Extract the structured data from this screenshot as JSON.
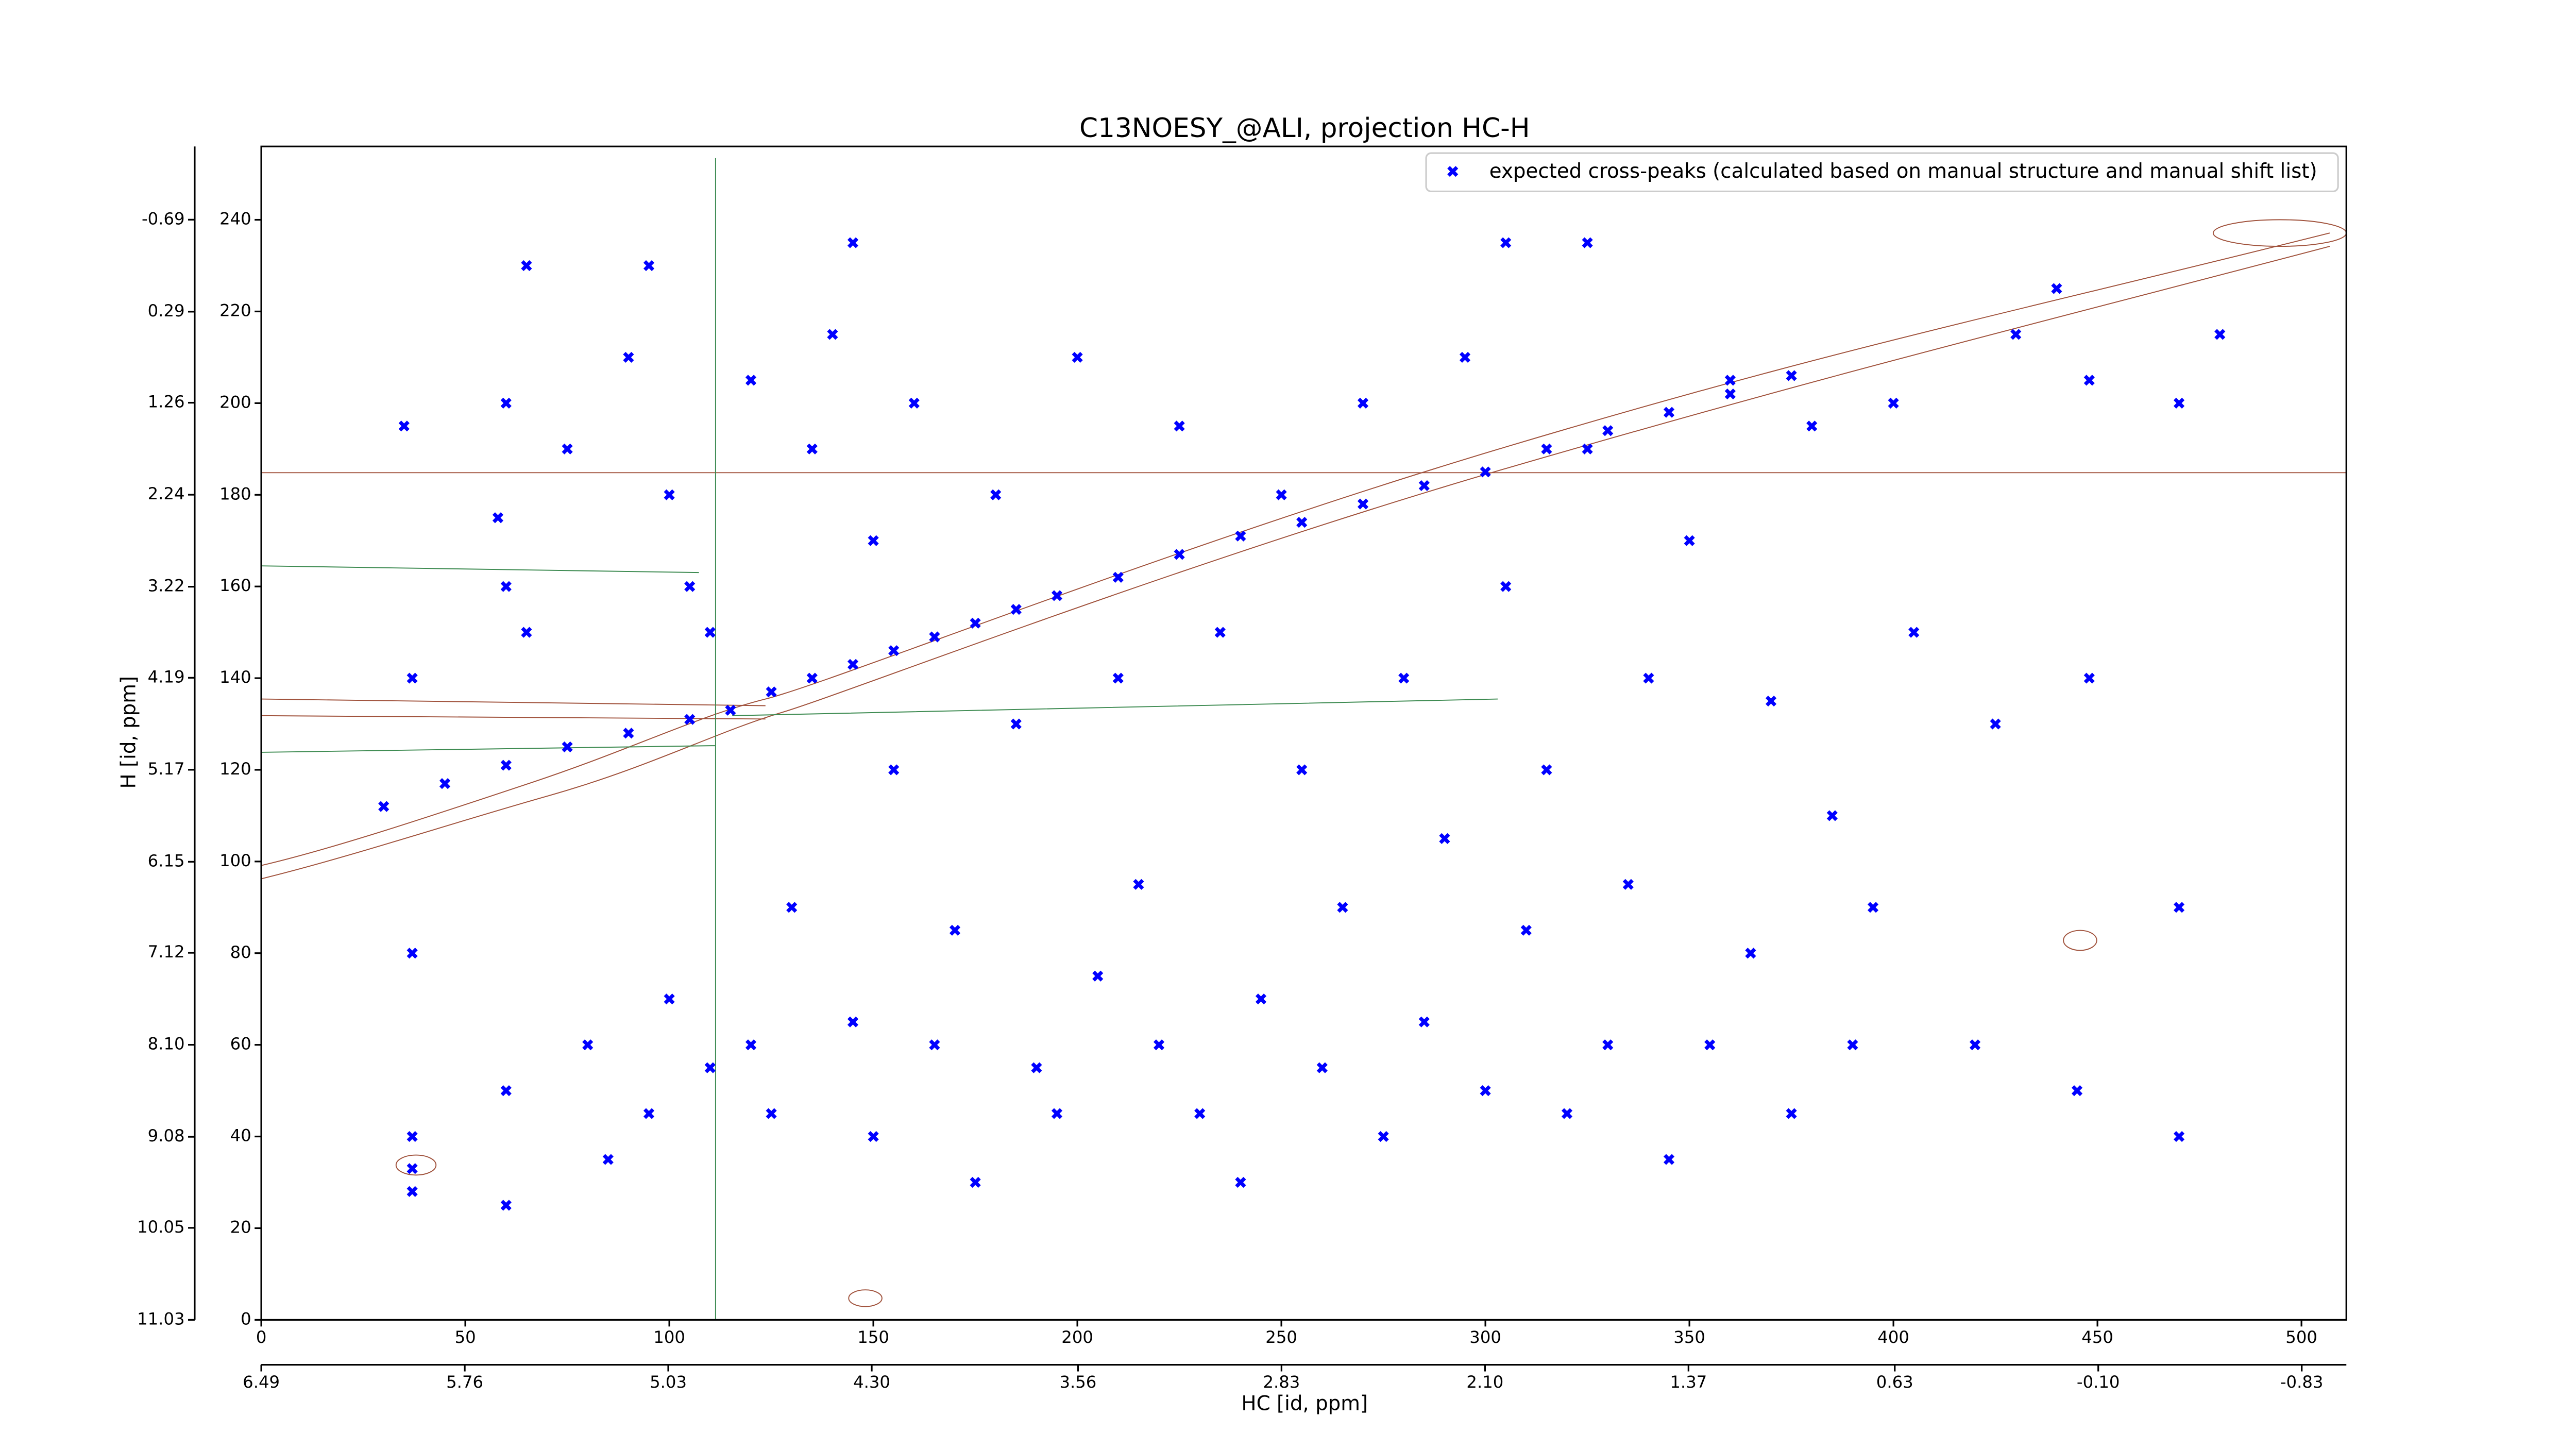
{
  "chart_data": {
    "type": "scatter",
    "title": "C13NOESY_@ALI, projection HC-H",
    "xlabel": "HC [id, ppm]",
    "ylabel": "H [id, ppm]",
    "xlim": [
      0,
      511
    ],
    "ylim": [
      0,
      256
    ],
    "xticks": [
      0,
      50,
      100,
      150,
      200,
      250,
      300,
      350,
      400,
      450,
      500
    ],
    "yticks": [
      0,
      20,
      40,
      60,
      80,
      100,
      120,
      140,
      160,
      180,
      200,
      220,
      240
    ],
    "x2lim": [
      6.49,
      -0.99
    ],
    "x2ticks": [
      6.49,
      5.76,
      5.03,
      {
        "value": 4.3,
        "label": "4.30"
      },
      3.56,
      2.83,
      {
        "value": 2.1,
        "label": "2.10"
      },
      1.37,
      0.63,
      {
        "value": -0.1,
        "label": "-0.10"
      },
      -0.83
    ],
    "y2lim": [
      11.03,
      -1.47
    ],
    "y2ticks": [
      11.03,
      10.05,
      9.08,
      {
        "value": 8.1,
        "label": "8.10"
      },
      7.12,
      6.15,
      5.17,
      4.19,
      3.22,
      2.24,
      1.26,
      0.29,
      -0.69
    ],
    "legend": "upper right",
    "series": [
      {
        "name": "expected cross-peaks (calculated based on manual structure and manual shift list)",
        "color": "#0000ff",
        "x": [
          30,
          45,
          60,
          75,
          90,
          105,
          115,
          125,
          135,
          145,
          155,
          165,
          175,
          185,
          195,
          210,
          225,
          240,
          255,
          270,
          285,
          300,
          315,
          330,
          345,
          360,
          375,
          37,
          37,
          37,
          37,
          37,
          60,
          60,
          60,
          60,
          65,
          75,
          80,
          85,
          90,
          95,
          100,
          100,
          105,
          110,
          110,
          120,
          120,
          125,
          130,
          135,
          140,
          145,
          150,
          150,
          155,
          160,
          165,
          170,
          175,
          180,
          185,
          190,
          195,
          200,
          205,
          210,
          215,
          220,
          225,
          230,
          235,
          240,
          245,
          250,
          255,
          260,
          265,
          270,
          275,
          280,
          285,
          290,
          295,
          300,
          305,
          310,
          315,
          320,
          325,
          330,
          335,
          340,
          345,
          350,
          355,
          360,
          365,
          370,
          375,
          380,
          385,
          390,
          395,
          400,
          405,
          420,
          425,
          430,
          440,
          445,
          448,
          448,
          470,
          470,
          470,
          480,
          35,
          58,
          65,
          95,
          145,
          305,
          325
        ],
        "y": [
          112,
          117,
          121,
          125,
          128,
          131,
          133,
          137,
          140,
          143,
          146,
          149,
          152,
          155,
          158,
          162,
          167,
          171,
          174,
          178,
          182,
          185,
          190,
          194,
          198,
          202,
          206,
          40,
          28,
          33,
          80,
          140,
          25,
          50,
          200,
          160,
          150,
          190,
          60,
          35,
          210,
          45,
          70,
          180,
          160,
          150,
          55,
          205,
          60,
          45,
          90,
          190,
          215,
          65,
          40,
          170,
          120,
          200,
          60,
          85,
          30,
          180,
          130,
          55,
          45,
          210,
          75,
          140,
          95,
          60,
          195,
          45,
          150,
          30,
          70,
          180,
          120,
          55,
          90,
          200,
          40,
          140,
          65,
          105,
          210,
          50,
          160,
          85,
          120,
          45,
          190,
          60,
          95,
          140,
          35,
          170,
          60,
          205,
          80,
          135,
          45,
          195,
          110,
          60,
          90,
          200,
          150,
          60,
          130,
          215,
          225,
          50,
          140,
          205,
          40,
          90,
          200,
          215,
          195,
          175,
          230,
          230,
          235,
          235,
          235
        ]
      }
    ]
  }
}
